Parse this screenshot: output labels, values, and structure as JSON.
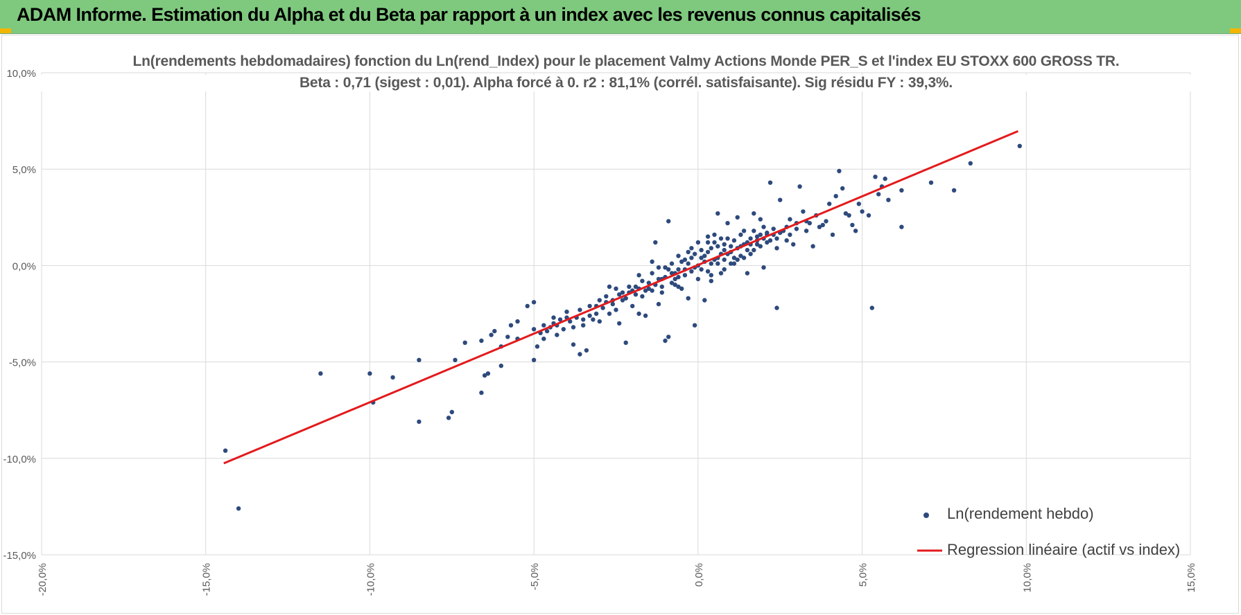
{
  "header": {
    "title": "ADAM Informe. Estimation du Alpha et du Beta par rapport à un index avec les revenus connus capitalisés",
    "background_color": "#7fc97f",
    "corner_color": "#f2b600"
  },
  "chart_data": {
    "type": "scatter",
    "title": "Ln(rendements hebdomadaires) fonction du Ln(rend_Index) pour le placement Valmy Actions Monde PER_S et l'index EU STOXX 600 GROSS TR.",
    "subtitle": "Beta : 0,71 (sigest : 0,01). Alpha forcé à 0. r2 : 81,1% (corrél. satisfaisante). Sig résidu FY : 39,3%.",
    "xlabel": "",
    "ylabel": "",
    "xlim": [
      -0.2,
      0.15
    ],
    "ylim": [
      -0.15,
      0.1
    ],
    "x_ticks": [
      "-20,0%",
      "-15,0%",
      "-10,0%",
      "-5,0%",
      "0,0%",
      "5,0%",
      "10,0%",
      "15,0%"
    ],
    "y_ticks": [
      "10,0%",
      "5,0%",
      "0,0%",
      "-5,0%",
      "-10,0%",
      "-15,0%"
    ],
    "grid": true,
    "legend_position": "bottom-right",
    "series": [
      {
        "name": "Ln(rendement hebdo)",
        "kind": "scatter",
        "color": "#2e4a7d",
        "points": [
          [
            -0.144,
            -0.096
          ],
          [
            -0.14,
            -0.126
          ],
          [
            -0.115,
            -0.056
          ],
          [
            -0.1,
            -0.056
          ],
          [
            -0.099,
            -0.071
          ],
          [
            -0.093,
            -0.058
          ],
          [
            -0.085,
            -0.049
          ],
          [
            -0.085,
            -0.081
          ],
          [
            -0.076,
            -0.079
          ],
          [
            -0.075,
            -0.076
          ],
          [
            -0.074,
            -0.049
          ],
          [
            -0.071,
            -0.04
          ],
          [
            -0.066,
            -0.039
          ],
          [
            -0.066,
            -0.066
          ],
          [
            -0.065,
            -0.057
          ],
          [
            -0.064,
            -0.056
          ],
          [
            -0.063,
            -0.036
          ],
          [
            -0.062,
            -0.034
          ],
          [
            -0.06,
            -0.052
          ],
          [
            -0.058,
            -0.037
          ],
          [
            -0.057,
            -0.031
          ],
          [
            -0.055,
            -0.029
          ],
          [
            -0.052,
            -0.021
          ],
          [
            -0.05,
            -0.049
          ],
          [
            -0.05,
            -0.019
          ],
          [
            -0.049,
            -0.042
          ],
          [
            -0.048,
            -0.035
          ],
          [
            -0.047,
            -0.031
          ],
          [
            -0.046,
            -0.034
          ],
          [
            -0.045,
            -0.032
          ],
          [
            -0.044,
            -0.03
          ],
          [
            -0.043,
            -0.036
          ],
          [
            -0.042,
            -0.028
          ],
          [
            -0.041,
            -0.033
          ],
          [
            -0.04,
            -0.024
          ],
          [
            -0.039,
            -0.029
          ],
          [
            -0.038,
            -0.041
          ],
          [
            -0.037,
            -0.027
          ],
          [
            -0.036,
            -0.046
          ],
          [
            -0.035,
            -0.031
          ],
          [
            -0.034,
            -0.044
          ],
          [
            -0.033,
            -0.021
          ],
          [
            -0.032,
            -0.028
          ],
          [
            -0.031,
            -0.025
          ],
          [
            -0.03,
            -0.029
          ],
          [
            -0.029,
            -0.022
          ],
          [
            -0.028,
            -0.016
          ],
          [
            -0.027,
            -0.025
          ],
          [
            -0.026,
            -0.018
          ],
          [
            -0.025,
            -0.023
          ],
          [
            -0.024,
            -0.03
          ],
          [
            -0.023,
            -0.018
          ],
          [
            -0.022,
            -0.04
          ],
          [
            -0.021,
            -0.014
          ],
          [
            -0.02,
            -0.021
          ],
          [
            -0.019,
            -0.011
          ],
          [
            -0.018,
            -0.025
          ],
          [
            -0.017,
            -0.016
          ],
          [
            -0.016,
            -0.026
          ],
          [
            -0.015,
            -0.009
          ],
          [
            -0.014,
            -0.013
          ],
          [
            -0.013,
            0.012
          ],
          [
            -0.012,
            -0.02
          ],
          [
            -0.011,
            -0.007
          ],
          [
            -0.01,
            -0.039
          ],
          [
            -0.009,
            -0.037
          ],
          [
            -0.009,
            0.023
          ],
          [
            -0.008,
            -0.004
          ],
          [
            -0.007,
            -0.01
          ],
          [
            -0.006,
            0.005
          ],
          [
            -0.005,
            -0.012
          ],
          [
            -0.004,
            -0.002
          ],
          [
            -0.003,
            -0.017
          ],
          [
            -0.002,
            0.009
          ],
          [
            -0.001,
            -0.031
          ],
          [
            0.001,
            0.004
          ],
          [
            0.002,
            -0.018
          ],
          [
            0.003,
            0.012
          ],
          [
            0.004,
            -0.008
          ],
          [
            0.005,
            0.016
          ],
          [
            0.006,
            0.027
          ],
          [
            0.007,
            -0.004
          ],
          [
            0.008,
            0.008
          ],
          [
            0.009,
            0.022
          ],
          [
            0.01,
            0.001
          ],
          [
            0.012,
            0.025
          ],
          [
            0.013,
            0.005
          ],
          [
            0.014,
            0.018
          ],
          [
            0.015,
            -0.004
          ],
          [
            0.016,
            0.011
          ],
          [
            0.017,
            0.027
          ],
          [
            0.018,
            0.013
          ],
          [
            0.019,
            0.024
          ],
          [
            0.02,
            -0.001
          ],
          [
            0.021,
            0.017
          ],
          [
            0.022,
            0.043
          ],
          [
            0.023,
            0.016
          ],
          [
            0.024,
            0.009
          ],
          [
            0.025,
            0.034
          ],
          [
            0.024,
            -0.022
          ],
          [
            0.027,
            0.02
          ],
          [
            0.028,
            0.024
          ],
          [
            0.029,
            0.011
          ],
          [
            0.03,
            0.019
          ],
          [
            0.031,
            0.041
          ],
          [
            0.032,
            0.028
          ],
          [
            0.033,
            0.018
          ],
          [
            0.034,
            0.022
          ],
          [
            0.035,
            0.01
          ],
          [
            0.036,
            0.026
          ],
          [
            0.037,
            0.02
          ],
          [
            0.038,
            0.021
          ],
          [
            0.039,
            0.023
          ],
          [
            0.04,
            0.032
          ],
          [
            0.041,
            0.016
          ],
          [
            0.042,
            0.036
          ],
          [
            0.043,
            0.049
          ],
          [
            0.044,
            0.04
          ],
          [
            0.045,
            0.027
          ],
          [
            0.046,
            0.026
          ],
          [
            0.047,
            0.021
          ],
          [
            0.048,
            0.018
          ],
          [
            0.049,
            0.032
          ],
          [
            0.05,
            0.028
          ],
          [
            0.052,
            0.026
          ],
          [
            0.053,
            -0.022
          ],
          [
            0.054,
            0.046
          ],
          [
            0.055,
            0.037
          ],
          [
            0.056,
            0.041
          ],
          [
            0.057,
            0.045
          ],
          [
            0.058,
            0.034
          ],
          [
            0.062,
            0.039
          ],
          [
            0.062,
            0.02
          ],
          [
            0.071,
            0.043
          ],
          [
            0.078,
            0.039
          ],
          [
            0.083,
            0.053
          ],
          [
            0.098,
            0.062
          ],
          [
            0.0,
            0.012
          ],
          [
            -0.001,
            0.006
          ],
          [
            0.002,
            0.002
          ],
          [
            0.003,
            0.007
          ],
          [
            -0.002,
            -0.003
          ],
          [
            0.004,
            0.009
          ],
          [
            0.006,
            0.004
          ],
          [
            0.008,
            0.011
          ],
          [
            0.01,
            0.007
          ],
          [
            0.011,
            0.013
          ],
          [
            0.012,
            0.009
          ],
          [
            0.014,
            0.011
          ],
          [
            -0.003,
            0.001
          ],
          [
            -0.004,
            -0.005
          ],
          [
            -0.006,
            -0.006
          ],
          [
            -0.007,
            -0.004
          ],
          [
            -0.008,
            -0.009
          ],
          [
            -0.01,
            -0.006
          ],
          [
            -0.011,
            -0.011
          ],
          [
            -0.012,
            -0.007
          ],
          [
            -0.013,
            -0.01
          ],
          [
            -0.015,
            -0.012
          ],
          [
            0.005,
            0.003
          ],
          [
            0.007,
            0.006
          ],
          [
            0.009,
            0.006
          ],
          [
            0.013,
            0.01
          ],
          [
            0.015,
            0.012
          ],
          [
            0.016,
            0.014
          ],
          [
            0.017,
            0.008
          ],
          [
            0.018,
            0.015
          ],
          [
            0.019,
            0.01
          ],
          [
            0.02,
            0.014
          ],
          [
            0.021,
            0.012
          ],
          [
            0.022,
            0.013
          ],
          [
            0.023,
            0.019
          ],
          [
            0.0,
            0.0
          ],
          [
            0.001,
            -0.002
          ],
          [
            -0.001,
            -0.001
          ],
          [
            0.002,
            0.005
          ],
          [
            0.004,
            0.001
          ],
          [
            0.006,
            0.01
          ],
          [
            0.008,
            0.003
          ],
          [
            0.01,
            0.01
          ],
          [
            -0.005,
            0.002
          ],
          [
            -0.007,
            -0.007
          ],
          [
            -0.009,
            -0.002
          ],
          [
            -0.016,
            -0.013
          ],
          [
            -0.018,
            -0.012
          ],
          [
            -0.02,
            -0.013
          ],
          [
            -0.022,
            -0.017
          ],
          [
            -0.024,
            -0.015
          ],
          [
            -0.026,
            -0.02
          ],
          [
            -0.028,
            -0.019
          ],
          [
            -0.03,
            -0.018
          ],
          [
            -0.012,
            -0.001
          ],
          [
            -0.004,
            0.003
          ],
          [
            0.003,
            -0.003
          ],
          [
            0.012,
            0.003
          ],
          [
            0.016,
            0.006
          ],
          [
            0.019,
            0.016
          ],
          [
            0.024,
            0.014
          ],
          [
            0.026,
            0.018
          ],
          [
            0.028,
            0.016
          ],
          [
            0.03,
            0.022
          ],
          [
            0.033,
            0.023
          ],
          [
            -0.033,
            -0.026
          ],
          [
            -0.036,
            -0.023
          ],
          [
            -0.04,
            -0.027
          ],
          [
            -0.044,
            -0.027
          ],
          [
            -0.047,
            -0.038
          ],
          [
            0.001,
            0.008
          ],
          [
            0.005,
            0.012
          ],
          [
            0.009,
            0.014
          ],
          [
            0.011,
            0.004
          ],
          [
            0.015,
            0.008
          ],
          [
            -0.002,
            0.004
          ],
          [
            -0.006,
            -0.002
          ],
          [
            -0.008,
            0.001
          ],
          [
            -0.01,
            -0.001
          ],
          [
            -0.014,
            -0.004
          ],
          [
            -0.017,
            -0.008
          ],
          [
            -0.019,
            -0.015
          ],
          [
            -0.021,
            -0.011
          ],
          [
            -0.023,
            -0.014
          ],
          [
            -0.025,
            -0.012
          ],
          [
            0.018,
            0.011
          ],
          [
            0.021,
            0.016
          ],
          [
            0.025,
            0.017
          ],
          [
            0.027,
            0.013
          ],
          [
            0.006,
            0.001
          ],
          [
            0.007,
            0.014
          ],
          [
            0.003,
            0.015
          ],
          [
            -0.003,
            0.007
          ],
          [
            0.013,
            0.016
          ],
          [
            0.017,
            0.018
          ],
          [
            0.02,
            0.02
          ],
          [
            -0.011,
            -0.014
          ],
          [
            -0.006,
            -0.011
          ],
          [
            0.0,
            -0.007
          ],
          [
            0.004,
            -0.005
          ],
          [
            0.008,
            -0.002
          ],
          [
            0.011,
            0.001
          ],
          [
            0.014,
            0.004
          ],
          [
            -0.014,
            0.002
          ],
          [
            -0.018,
            -0.005
          ],
          [
            -0.027,
            -0.011
          ],
          [
            -0.031,
            -0.021
          ],
          [
            -0.035,
            -0.028
          ],
          [
            -0.038,
            -0.032
          ],
          [
            -0.043,
            -0.031
          ],
          [
            -0.05,
            -0.033
          ],
          [
            -0.055,
            -0.038
          ],
          [
            -0.06,
            -0.042
          ]
        ]
      },
      {
        "name": "Regression linéaire (actif vs index)",
        "kind": "line",
        "color": "#e31a1c",
        "points": [
          [
            -0.1445,
            -0.1026
          ],
          [
            0.0975,
            0.0697
          ]
        ]
      }
    ]
  }
}
